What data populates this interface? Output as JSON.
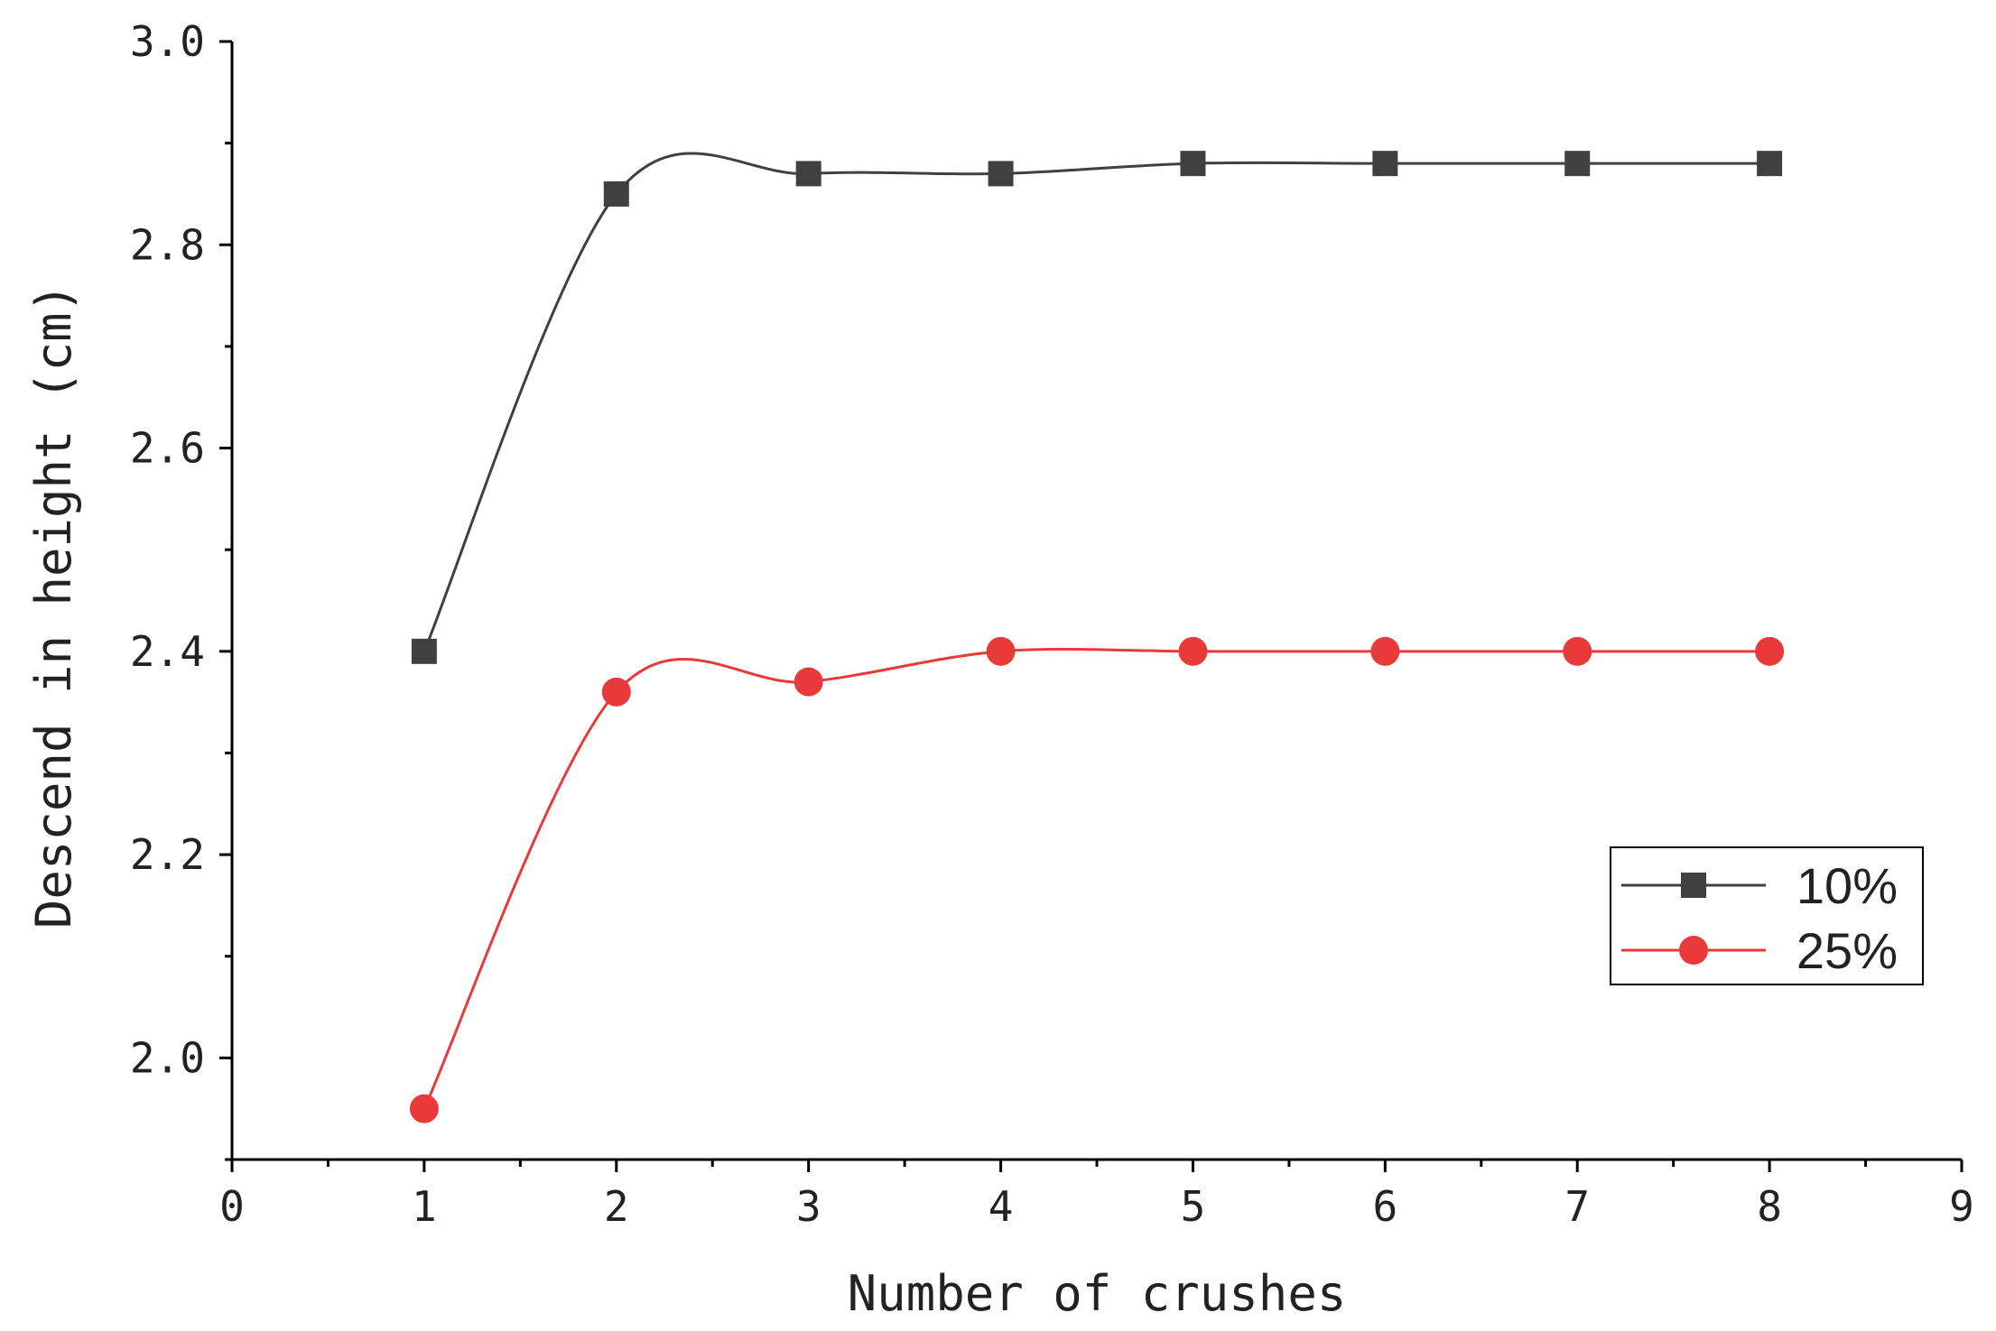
{
  "chart_data": {
    "type": "line",
    "title": "",
    "xlabel": "Number of crushes",
    "ylabel": "Descend in height (cm)",
    "xlim": [
      0,
      9
    ],
    "ylim": [
      1.9,
      3.0
    ],
    "x_ticks": [
      "0",
      "1",
      "2",
      "3",
      "4",
      "5",
      "6",
      "7",
      "8",
      "9"
    ],
    "y_ticks": [
      "2.0",
      "2.2",
      "2.4",
      "2.6",
      "2.8",
      "3.0"
    ],
    "grid": false,
    "smooth": true,
    "legend_position": "center-right",
    "series": [
      {
        "name": "10%",
        "color": "#404040",
        "marker": "square",
        "x": [
          1,
          2,
          3,
          4,
          5,
          6,
          7,
          8
        ],
        "y": [
          2.4,
          2.85,
          2.87,
          2.87,
          2.88,
          2.88,
          2.88,
          2.88
        ]
      },
      {
        "name": "25%",
        "color": "#e83a3a",
        "marker": "circle",
        "x": [
          1,
          2,
          3,
          4,
          5,
          6,
          7,
          8
        ],
        "y": [
          1.95,
          2.36,
          2.37,
          2.4,
          2.4,
          2.4,
          2.4,
          2.4
        ]
      }
    ]
  }
}
